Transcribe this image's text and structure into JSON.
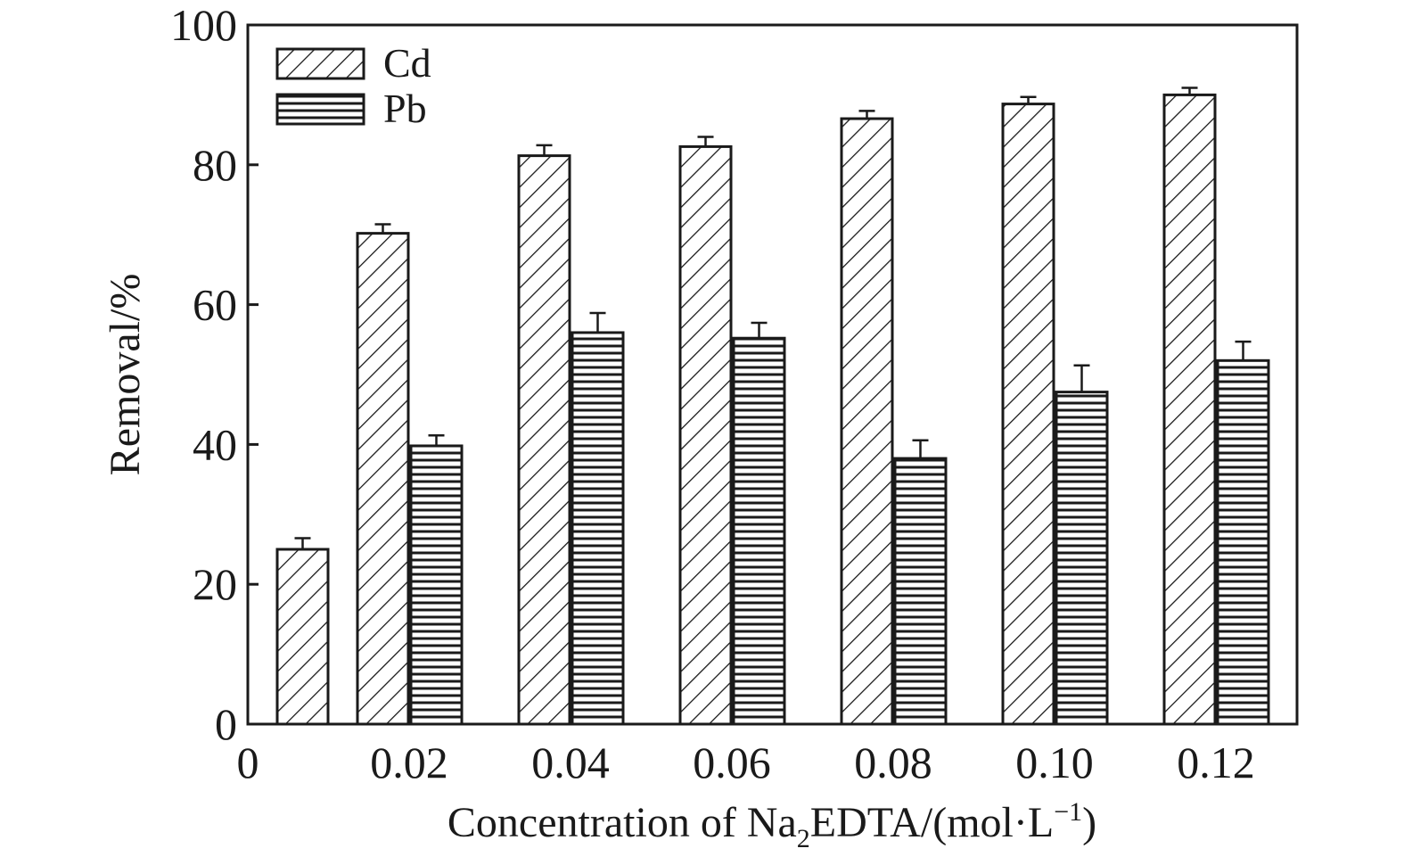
{
  "chart_data": {
    "type": "bar",
    "xlabel": {
      "prefix": "Concentration of Na",
      "sub": "2",
      "mid": "EDTA/(mol·L",
      "sup": "−1",
      "suffix": ")"
    },
    "ylabel": "Removal/%",
    "categories": [
      "0",
      "0.02",
      "0.04",
      "0.06",
      "0.08",
      "0.10",
      "0.12"
    ],
    "ylim": [
      0,
      100
    ],
    "yticks": [
      "0",
      "20",
      "40",
      "60",
      "80",
      "100"
    ],
    "series": [
      {
        "name": "Cd",
        "pattern": "diagonal-hatch",
        "values": [
          25,
          70.2,
          81.3,
          82.6,
          86.6,
          88.7,
          90
        ],
        "errors": [
          1.6,
          1.3,
          1.5,
          1.4,
          1.1,
          1.0,
          1.0
        ]
      },
      {
        "name": "Pb",
        "pattern": "horizontal-lines",
        "values": [
          null,
          39.8,
          56,
          55.2,
          38,
          47.5,
          52
        ],
        "errors": [
          null,
          1.5,
          2.8,
          2.2,
          2.6,
          3.8,
          2.7
        ]
      }
    ],
    "legend_position": "top-left",
    "grid": false
  },
  "colors": {
    "ink": "#1a1a1a",
    "background": "#ffffff"
  }
}
